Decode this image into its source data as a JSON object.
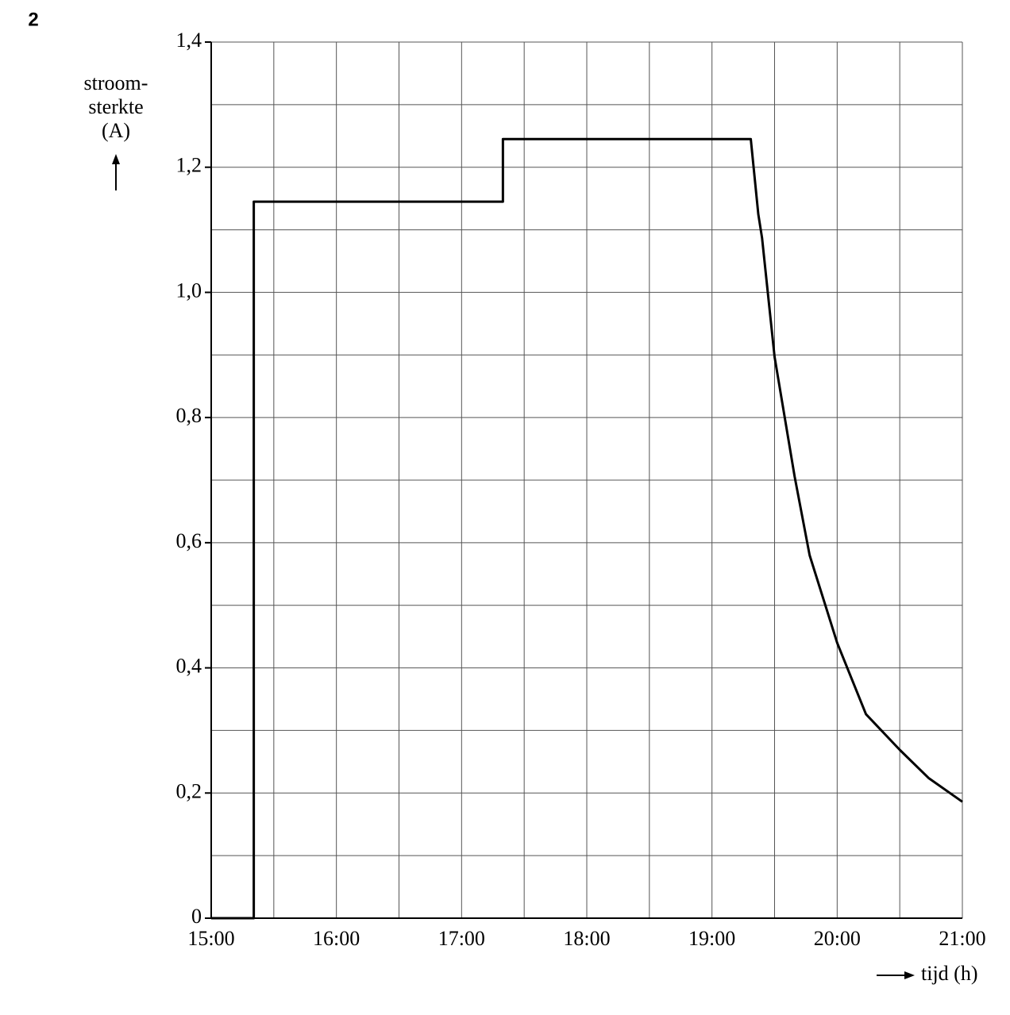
{
  "page_number": "2",
  "chart_data": {
    "type": "line",
    "ylabel": [
      "stroom-",
      "sterkte",
      "(A)"
    ],
    "xlabel": "tijd (h)",
    "xlim": [
      15,
      21
    ],
    "ylim": [
      0,
      1.4
    ],
    "xticks": [
      {
        "value": 15,
        "label": "15:00"
      },
      {
        "value": 16,
        "label": "16:00"
      },
      {
        "value": 17,
        "label": "17:00"
      },
      {
        "value": 18,
        "label": "18:00"
      },
      {
        "value": 19,
        "label": "19:00"
      },
      {
        "value": 20,
        "label": "20:00"
      },
      {
        "value": 21,
        "label": "21:00"
      }
    ],
    "yticks": [
      0,
      {
        "value": 0.2,
        "label": "0,2"
      },
      {
        "value": 0.4,
        "label": "0,4"
      },
      {
        "value": 0.6,
        "label": "0,6"
      },
      {
        "value": 0.8,
        "label": "0,8"
      },
      {
        "value": 1.0,
        "label": "1,0"
      },
      {
        "value": 1.2,
        "label": "1,2"
      },
      {
        "value": 1.4,
        "label": "1,4"
      }
    ],
    "xminorticks": [
      15.5,
      16.5,
      17.5,
      18.5,
      19.5,
      20.5
    ],
    "yminorticks": [
      0.1,
      0.3,
      0.5,
      0.7,
      0.9,
      1.1,
      1.3
    ],
    "grid": true,
    "series": [
      {
        "color": "#000000",
        "x": [
          15,
          15.34,
          15.34,
          17.33,
          17.33,
          19.31,
          19.37,
          19.4,
          19.5,
          19.66,
          19.78,
          20.0,
          20.23,
          20.5,
          20.73,
          21.0
        ],
        "values": [
          0,
          0,
          1.145,
          1.145,
          1.245,
          1.245,
          1.125,
          1.087,
          0.897,
          0.706,
          0.58,
          0.44,
          0.326,
          0.269,
          0.224,
          0.186
        ]
      }
    ]
  }
}
